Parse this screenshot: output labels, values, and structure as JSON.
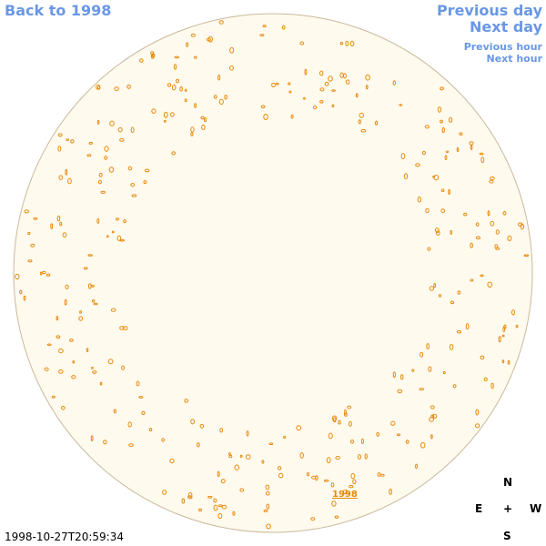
{
  "nav": {
    "back": "Back to 1998",
    "previous_day": "Previous day",
    "next_day": "Next day",
    "previous_hour": "Previous hour",
    "next_hour": "Next hour"
  },
  "disk_label": "1998",
  "compass": {
    "north": "N",
    "east": "E",
    "center": "+",
    "west": "W",
    "south": "S"
  },
  "timestamp": "1998-10-27T20:59:34"
}
